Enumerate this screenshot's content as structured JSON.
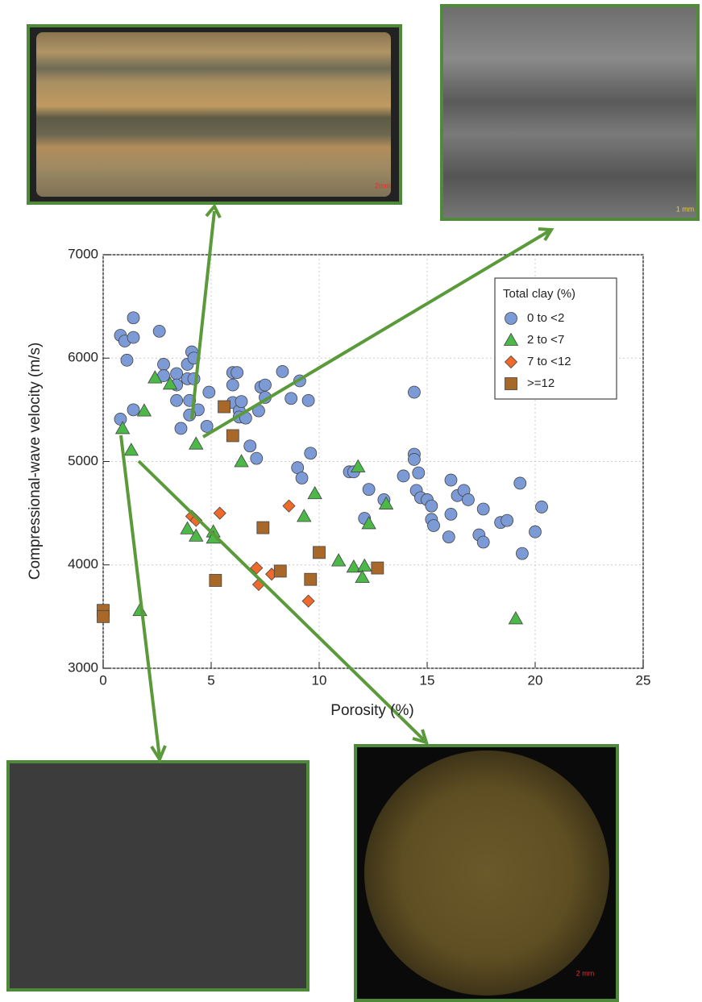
{
  "chart_data": {
    "type": "scatter",
    "xlabel": "Porosity (%)",
    "ylabel": "Compressional-wave velocity (m/s)",
    "xlim": [
      0,
      25
    ],
    "ylim": [
      3000,
      7000
    ],
    "xticks": [
      0,
      5,
      10,
      15,
      20,
      25
    ],
    "yticks": [
      3000,
      4000,
      5000,
      6000,
      7000
    ],
    "grid": true,
    "legend_title": "Total clay (%)",
    "legend_position": "upper right",
    "series": [
      {
        "name": "0 to <2",
        "color": "#7b9ad6",
        "marker": "circle",
        "x": [
          0.8,
          1.0,
          1.4,
          1.4,
          1.1,
          1.4,
          0.8,
          2.6,
          2.8,
          2.8,
          3.4,
          3.4,
          3.4,
          3.6,
          3.9,
          3.9,
          4.0,
          4.1,
          4.2,
          4.2,
          4.4,
          4.0,
          4.9,
          4.8,
          6.0,
          6.2,
          6.0,
          6.0,
          6.3,
          6.4,
          6.3,
          6.6,
          6.8,
          7.1,
          7.2,
          7.3,
          7.5,
          7.5,
          8.3,
          8.7,
          9.1,
          9.5,
          9.0,
          9.2,
          9.6,
          11.4,
          11.6,
          12.1,
          12.3,
          13.0,
          13.9,
          14.4,
          14.4,
          14.4,
          14.6,
          14.5,
          14.7,
          15.0,
          15.2,
          15.2,
          15.3,
          16.0,
          16.1,
          16.1,
          16.4,
          16.7,
          16.9,
          17.4,
          17.6,
          17.6,
          18.4,
          18.7,
          19.3,
          19.4,
          20.0,
          20.3
        ],
        "values": [
          6220,
          6165,
          6390,
          6200,
          5980,
          5500,
          5410,
          6260,
          5940,
          5830,
          5850,
          5740,
          5590,
          5320,
          5940,
          5800,
          5590,
          6060,
          6000,
          5800,
          5500,
          5450,
          5670,
          5340,
          5860,
          5860,
          5740,
          5570,
          5490,
          5580,
          5430,
          5420,
          5150,
          5030,
          5490,
          5720,
          5740,
          5620,
          5870,
          5610,
          5780,
          5590,
          4940,
          4840,
          5080,
          4900,
          4900,
          4450,
          4730,
          4630,
          4860,
          5670,
          5070,
          5020,
          4890,
          4720,
          4650,
          4630,
          4570,
          4440,
          4380,
          4270,
          4820,
          4490,
          4670,
          4720,
          4630,
          4290,
          4540,
          4220,
          4410,
          4430,
          4790,
          4110,
          4320,
          4560
        ]
      },
      {
        "name": "2 to <7",
        "color": "#4cb848",
        "marker": "triangle",
        "x": [
          2.4,
          3.1,
          1.9,
          0.9,
          1.3,
          4.3,
          6.4,
          11.8,
          9.8,
          9.3,
          13.1,
          12.3,
          3.9,
          4.3,
          5.1,
          5.1,
          10.9,
          11.6,
          12.1,
          12.0,
          1.7,
          19.1
        ],
        "values": [
          5810,
          5750,
          5490,
          5320,
          5110,
          5170,
          5000,
          4950,
          4690,
          4470,
          4590,
          4400,
          4350,
          4280,
          4320,
          4260,
          4040,
          3980,
          3990,
          3880,
          3560,
          3480
        ]
      },
      {
        "name": "7 to <12",
        "color": "#ef6a2a",
        "marker": "diamond",
        "x": [
          4.1,
          4.3,
          5.4,
          8.6,
          7.1,
          7.2,
          7.8,
          9.5
        ],
        "values": [
          4470,
          4430,
          4500,
          4570,
          3970,
          3810,
          3910,
          3650
        ]
      },
      {
        "name": ">=12",
        "color": "#a8682a",
        "marker": "square",
        "x": [
          0.0,
          0.0,
          5.6,
          6.0,
          5.2,
          7.4,
          8.2,
          9.6,
          10.0,
          12.7
        ],
        "values": [
          3560,
          3500,
          5530,
          5250,
          3850,
          4360,
          3940,
          3860,
          4120,
          3970
        ]
      }
    ]
  },
  "images": [
    {
      "scale_label": "2mm"
    },
    {
      "scale_label": "1 mm"
    },
    {
      "scale_label": "2 mm"
    }
  ]
}
